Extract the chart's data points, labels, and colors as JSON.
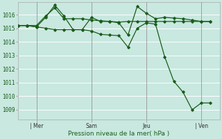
{
  "background_color": "#c8e8e0",
  "grid_color": "#ffffff",
  "line_color": "#1a5c1a",
  "marker_color": "#1a5c1a",
  "ylabel_ticks": [
    1009,
    1010,
    1011,
    1012,
    1013,
    1014,
    1015,
    1016
  ],
  "ylim": [
    1008.3,
    1016.9
  ],
  "xlabel": "Pression niveau de la mer( hPa )",
  "day_labels": [
    "| Mer",
    "Sam",
    "Jeu",
    "| Ven"
  ],
  "day_positions": [
    1,
    4,
    7,
    10
  ],
  "vline_positions": [
    1,
    4,
    7,
    10
  ],
  "s1_x": [
    0,
    0.5,
    1,
    1.5,
    2,
    2.5,
    3,
    3.5,
    4,
    4.5,
    5,
    5.5,
    6,
    6.5,
    7,
    7.5,
    8,
    8.5,
    9,
    9.5,
    10,
    10.5
  ],
  "s1_y": [
    1015.2,
    1015.2,
    1015.2,
    1015.9,
    1016.5,
    1015.7,
    1015.7,
    1015.7,
    1015.6,
    1015.55,
    1015.5,
    1015.45,
    1015.5,
    1015.5,
    1015.5,
    1015.5,
    1015.5,
    1015.5,
    1015.5,
    1015.5,
    1015.5,
    1015.5
  ],
  "s2_x": [
    0,
    0.5,
    1,
    1.5,
    2,
    2.5,
    3,
    3.5,
    4,
    4.5,
    5,
    5.5,
    6,
    6.5,
    7,
    7.5,
    8,
    8.5,
    9,
    9.5,
    10,
    10.5
  ],
  "s2_y": [
    1015.2,
    1015.2,
    1015.1,
    1015.8,
    1016.7,
    1015.9,
    1014.9,
    1014.9,
    1015.8,
    1015.5,
    1015.5,
    1015.4,
    1014.5,
    1016.6,
    1016.1,
    1015.7,
    1015.8,
    1015.75,
    1015.7,
    1015.6,
    1015.5,
    1015.5
  ],
  "s3_x": [
    0,
    0.5,
    1,
    1.5,
    2,
    2.5,
    3,
    3.5,
    4,
    4.5,
    5,
    5.5,
    6,
    6.5,
    7,
    7.5,
    8,
    8.5,
    9,
    9.5,
    10,
    10.5
  ],
  "s3_y": [
    1015.2,
    1015.2,
    1015.1,
    1015.0,
    1014.9,
    1014.9,
    1014.9,
    1014.9,
    1014.8,
    1014.55,
    1014.5,
    1014.45,
    1013.6,
    1015.0,
    1015.4,
    1015.3,
    1012.9,
    1011.1,
    1010.3,
    1009.0,
    1009.5,
    1009.5
  ],
  "xlim": [
    0,
    11.0
  ],
  "figsize": [
    3.2,
    2.0
  ],
  "dpi": 100
}
